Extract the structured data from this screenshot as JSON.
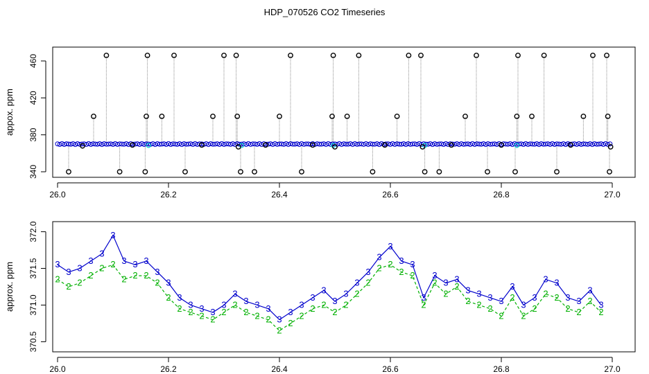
{
  "title": "HDP_070526  CO2 Timeseries",
  "colors": {
    "frame": "#000000",
    "points": "#000000",
    "drop_lines": "#8c8c8c",
    "series_3": "#0000cc",
    "series_2": "#00b000",
    "series_cyan": "#00cccc"
  },
  "chart_data": [
    {
      "type": "scatter",
      "title": "",
      "xlabel": "",
      "ylabel": "appox. ppm",
      "xlim": [
        26.0,
        27.0
      ],
      "ylim": [
        337,
        472
      ],
      "x_ticks": [
        "26.0",
        "26.2",
        "26.4",
        "26.6",
        "26.8",
        "27.0"
      ],
      "y_ticks": [
        "340",
        "380",
        "420",
        "460"
      ],
      "baseline_ppm": 370,
      "spikes": {
        "x": [
          26.02,
          26.045,
          26.065,
          26.088,
          26.112,
          26.135,
          26.158,
          26.16,
          26.162,
          26.188,
          26.21,
          26.23,
          26.26,
          26.28,
          26.3,
          26.322,
          26.324,
          26.326,
          26.33,
          26.355,
          26.375,
          26.4,
          26.42,
          26.44,
          26.46,
          26.495,
          26.497,
          26.5,
          26.522,
          26.543,
          26.568,
          26.59,
          26.612,
          26.633,
          26.655,
          26.658,
          26.662,
          26.688,
          26.71,
          26.735,
          26.755,
          26.775,
          26.8,
          26.825,
          26.828,
          26.83,
          26.855,
          26.877,
          26.9,
          26.925,
          26.948,
          26.965,
          26.99,
          26.992,
          26.995,
          26.997
        ],
        "y": [
          340,
          368,
          400,
          466,
          340,
          369,
          340,
          400,
          466,
          400,
          466,
          340,
          369,
          400,
          466,
          466,
          400,
          367,
          340,
          340,
          369,
          400,
          466,
          340,
          369,
          400,
          466,
          367,
          400,
          466,
          340,
          369,
          400,
          466,
          466,
          367,
          340,
          340,
          369,
          400,
          466,
          340,
          369,
          340,
          400,
          466,
          400,
          466,
          340,
          369,
          400,
          466,
          466,
          400,
          340,
          367
        ]
      }
    },
    {
      "type": "line",
      "title": "",
      "xlabel": "",
      "ylabel": "approx. ppm",
      "xlim": [
        26.0,
        27.0
      ],
      "ylim": [
        370.4,
        372.1
      ],
      "x_ticks": [
        "26.0",
        "26.2",
        "26.4",
        "26.6",
        "26.8",
        "27.0"
      ],
      "y_ticks": [
        "370.5",
        "371.0",
        "371.5",
        "372.0"
      ],
      "series": [
        {
          "name": "3",
          "x": [
            26.0,
            26.02,
            26.04,
            26.06,
            26.08,
            26.1,
            26.12,
            26.14,
            26.16,
            26.18,
            26.2,
            26.22,
            26.24,
            26.26,
            26.28,
            26.3,
            26.32,
            26.34,
            26.36,
            26.38,
            26.4,
            26.42,
            26.44,
            26.46,
            26.48,
            26.5,
            26.52,
            26.54,
            26.56,
            26.58,
            26.6,
            26.62,
            26.64,
            26.66,
            26.68,
            26.7,
            26.72,
            26.74,
            26.76,
            26.78,
            26.8,
            26.82,
            26.84,
            26.86,
            26.88,
            26.9,
            26.92,
            26.94,
            26.96,
            26.98
          ],
          "y": [
            371.55,
            371.45,
            371.5,
            371.6,
            371.7,
            371.95,
            371.6,
            371.55,
            371.6,
            371.45,
            371.3,
            371.1,
            371.0,
            370.95,
            370.9,
            371.0,
            371.15,
            371.05,
            371.0,
            370.95,
            370.8,
            370.9,
            371.0,
            371.1,
            371.2,
            371.05,
            371.15,
            371.3,
            371.45,
            371.65,
            371.8,
            371.6,
            371.55,
            371.1,
            371.4,
            371.3,
            371.35,
            371.2,
            371.15,
            371.1,
            371.05,
            371.25,
            371.0,
            371.1,
            371.35,
            371.3,
            371.1,
            371.05,
            371.2,
            371.0
          ]
        },
        {
          "name": "2",
          "x": [
            26.0,
            26.02,
            26.04,
            26.06,
            26.08,
            26.1,
            26.12,
            26.14,
            26.16,
            26.18,
            26.2,
            26.22,
            26.24,
            26.26,
            26.28,
            26.3,
            26.32,
            26.34,
            26.36,
            26.38,
            26.4,
            26.42,
            26.44,
            26.46,
            26.48,
            26.5,
            26.52,
            26.54,
            26.56,
            26.58,
            26.6,
            26.62,
            26.64,
            26.66,
            26.68,
            26.7,
            26.72,
            26.74,
            26.76,
            26.78,
            26.8,
            26.82,
            26.84,
            26.86,
            26.88,
            26.9,
            26.92,
            26.94,
            26.96,
            26.98
          ],
          "y": [
            371.35,
            371.25,
            371.3,
            371.4,
            371.5,
            371.55,
            371.35,
            371.4,
            371.4,
            371.3,
            371.1,
            370.95,
            370.9,
            370.85,
            370.8,
            370.9,
            371.0,
            370.9,
            370.85,
            370.8,
            370.65,
            370.75,
            370.85,
            370.95,
            371.0,
            370.9,
            371.0,
            371.15,
            371.3,
            371.5,
            371.55,
            371.45,
            371.4,
            371.0,
            371.3,
            371.15,
            371.25,
            371.05,
            371.0,
            370.95,
            370.85,
            371.1,
            370.85,
            370.95,
            371.15,
            371.1,
            370.95,
            370.9,
            371.05,
            370.9
          ]
        }
      ]
    }
  ]
}
